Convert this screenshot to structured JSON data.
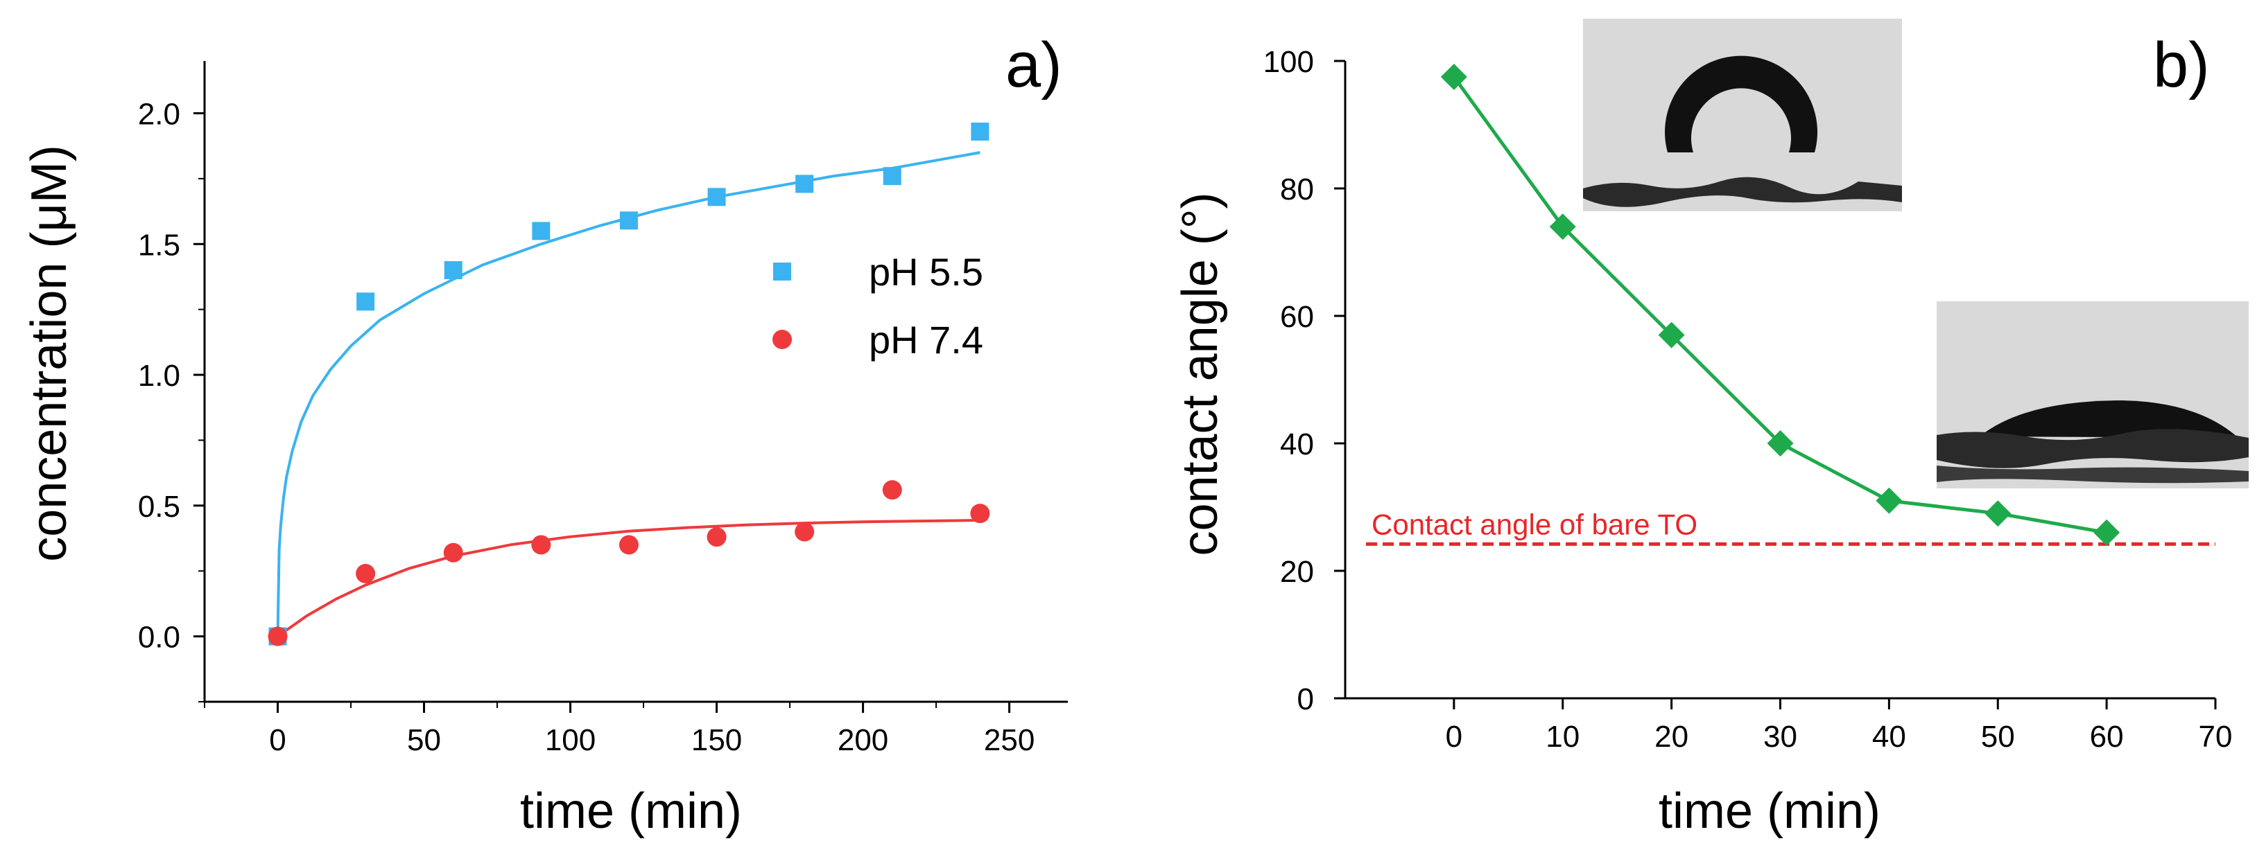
{
  "chart_data": [
    {
      "type": "scatter",
      "panel_label": "a)",
      "title": "",
      "xlabel": "time (min)",
      "ylabel": "concentration (μM)",
      "xlim": [
        -25,
        270
      ],
      "ylim": [
        -0.25,
        2.2
      ],
      "xticks": [
        0,
        50,
        100,
        150,
        200,
        250
      ],
      "yticks": [
        0.0,
        0.5,
        1.0,
        1.5,
        2.0
      ],
      "xtick_labels": [
        "0",
        "50",
        "100",
        "150",
        "200",
        "250"
      ],
      "ytick_labels": [
        "0.0",
        "0.5",
        "1.0",
        "1.5",
        "2.0"
      ],
      "grid": false,
      "legend_position": "right",
      "series": [
        {
          "name": "pH 5.5",
          "marker": "square",
          "color": "#3bb3f0",
          "x": [
            0,
            30,
            60,
            90,
            120,
            150,
            180,
            210,
            240
          ],
          "y": [
            0.0,
            1.28,
            1.4,
            1.55,
            1.59,
            1.68,
            1.73,
            1.76,
            1.93
          ],
          "fit": {
            "x": [
              0,
              0.5,
              1,
              2,
              3,
              5,
              8,
              12,
              18,
              25,
              35,
              50,
              70,
              90,
              110,
              130,
              150,
              170,
              190,
              210,
              230,
              240
            ],
            "y": [
              0.0,
              0.33,
              0.42,
              0.53,
              0.61,
              0.71,
              0.82,
              0.92,
              1.02,
              1.11,
              1.21,
              1.31,
              1.42,
              1.5,
              1.57,
              1.63,
              1.68,
              1.72,
              1.76,
              1.79,
              1.83,
              1.85
            ]
          }
        },
        {
          "name": "pH 7.4",
          "marker": "circle",
          "color": "#ee3a3c",
          "x": [
            0,
            30,
            60,
            90,
            120,
            150,
            180,
            210,
            240
          ],
          "y": [
            0.0,
            0.24,
            0.32,
            0.35,
            0.35,
            0.38,
            0.4,
            0.56,
            0.47
          ],
          "fit": {
            "x": [
              0,
              10,
              20,
              30,
              45,
              60,
              80,
              100,
              120,
              140,
              160,
              180,
              200,
              220,
              240
            ],
            "y": [
              0.0,
              0.079,
              0.143,
              0.196,
              0.26,
              0.307,
              0.351,
              0.381,
              0.402,
              0.416,
              0.426,
              0.433,
              0.438,
              0.441,
              0.444
            ]
          }
        }
      ]
    },
    {
      "type": "line",
      "panel_label": "b)",
      "title": "",
      "xlabel": "time (min)",
      "ylabel": "contact angle  (°)",
      "xlim": [
        -10,
        70
      ],
      "ylim": [
        0,
        100
      ],
      "xticks": [
        0,
        10,
        20,
        30,
        40,
        50,
        60,
        70
      ],
      "yticks": [
        0,
        20,
        40,
        60,
        80,
        100
      ],
      "xtick_labels": [
        "0",
        "10",
        "20",
        "30",
        "40",
        "50",
        "60",
        "70"
      ],
      "ytick_labels": [
        "0",
        "20",
        "40",
        "60",
        "80",
        "100"
      ],
      "grid": false,
      "series": [
        {
          "marker": "diamond",
          "color": "#1eaa4b",
          "x": [
            0,
            10,
            20,
            30,
            40,
            50,
            60
          ],
          "y": [
            97.5,
            74,
            57,
            40,
            31,
            29,
            26
          ]
        }
      ],
      "reference_line": {
        "y": 24.2,
        "label": "Contact angle of bare TO",
        "color": "#e8262a",
        "style": "dashed"
      },
      "insets": [
        "droplet photo at high contact angle",
        "droplet photo at low contact angle"
      ]
    }
  ]
}
